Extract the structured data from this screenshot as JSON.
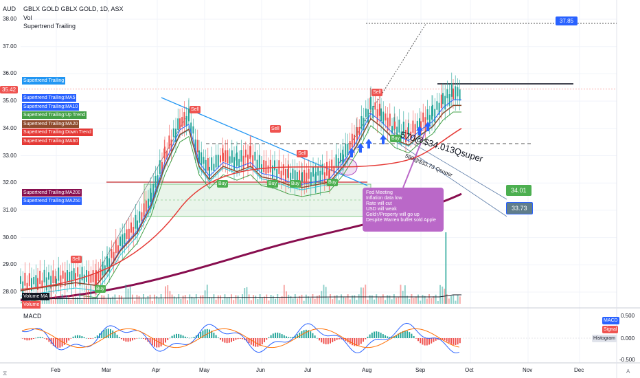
{
  "header": {
    "currency": "AUD",
    "title": "GBLX GOLD GBLX GOLD, 1D, ASX",
    "indicator_vol": "Vol",
    "indicator_st": "Supertrend Trailing"
  },
  "price_axis": {
    "ticks": [
      "38.00",
      "37.00",
      "36.00",
      "35.00",
      "34.00",
      "33.00",
      "32.00",
      "31.00",
      "30.00",
      "29.00",
      "28.00"
    ],
    "last_price": "35.42",
    "target_label": "37.85"
  },
  "time_axis": {
    "ticks": [
      "Feb",
      "Mar",
      "Apr",
      "May",
      "Jun",
      "Jul",
      "Aug",
      "Sep",
      "Oct",
      "Nov",
      "Dec"
    ]
  },
  "legend": {
    "top": "Supertrend Trailing",
    "items": [
      {
        "label": "Supertrend Trailing:MA5",
        "color": "#2962ff"
      },
      {
        "label": "Supertrend Trailing:MA10",
        "color": "#2962ff"
      },
      {
        "label": "Supertrend Trailing:Up Trend",
        "color": "#43a047"
      },
      {
        "label": "Supertrend Trailing:MA20",
        "color": "#8d4a2c"
      },
      {
        "label": "Supertrend Trailing:Down Trend",
        "color": "#e53935"
      },
      {
        "label": "Supertrend Trailing:MA60",
        "color": "#e53935"
      }
    ],
    "ma200": "Supertrend Trailing:MA200",
    "ma250": "Supertrend Trailing:MA250",
    "volume_ma": "Volume MA",
    "volume": "Volume"
  },
  "annotations": {
    "note_570": "570@$34.013Qsuper",
    "note_580": "580@$33.73 Qsuper",
    "tag_3401": "34.01",
    "tag_3373": "33.73",
    "fed_note": "Fed Meeting\nInflation data low\nRate will cut\nUSD will weak\nGold↑/Property will go up\nDespite Warren buffet sold Apple"
  },
  "signals": {
    "sell": "Sell",
    "buy": "Buy"
  },
  "macd": {
    "title": "MACD",
    "ticks": [
      "0.500",
      "0.000",
      "-0.500"
    ],
    "legend_macd": "MACD",
    "legend_signal": "Signal",
    "legend_histogram": "Histogram"
  },
  "colors": {
    "up": "#26a69a",
    "down": "#ef5350",
    "ma200": "#880e4f",
    "supertrend_blue": "#2196f3",
    "note_purple": "#ba68c8"
  }
}
